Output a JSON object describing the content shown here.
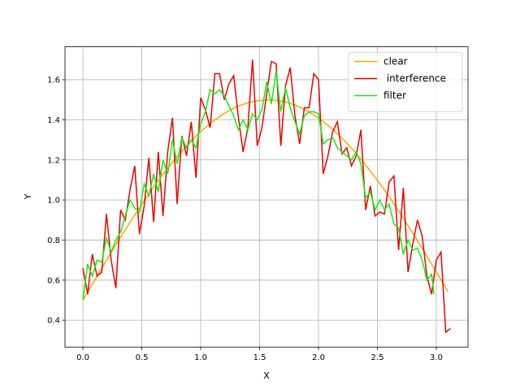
{
  "chart_data": {
    "type": "line",
    "xlabel": "X",
    "ylabel": "Y",
    "xlim": [
      -0.152,
      3.269
    ],
    "ylim": [
      0.266,
      1.764
    ],
    "xticks": [
      {
        "value": 0,
        "label": "0.0"
      },
      0.5,
      {
        "value": 1,
        "label": "1.0"
      },
      1.5,
      {
        "value": 2,
        "label": "2.0"
      },
      2.5,
      {
        "value": 3,
        "label": "3.0"
      }
    ],
    "yticks": [
      0.4,
      0.6,
      0.8,
      {
        "value": 1,
        "label": "1.0"
      },
      1.2,
      1.4,
      1.6
    ],
    "grid": true,
    "legend": "upper right",
    "series": [
      {
        "name": "clear",
        "color": "#ffa500",
        "x": [
          0,
          0.1,
          0.2,
          0.3,
          0.4,
          0.5,
          0.6,
          0.7,
          0.8,
          0.9,
          1.0,
          1.1,
          1.2,
          1.3,
          1.4,
          1.5,
          1.6,
          1.7,
          1.8,
          1.9,
          2.0,
          2.1,
          2.2,
          2.3,
          2.4,
          2.5,
          2.6,
          2.7,
          2.8,
          2.9,
          3.0,
          3.1
        ],
        "values": [
          0.5,
          0.6,
          0.699,
          0.796,
          0.889,
          0.979,
          1.065,
          1.144,
          1.217,
          1.283,
          1.341,
          1.391,
          1.432,
          1.464,
          1.485,
          1.497,
          1.5,
          1.492,
          1.474,
          1.446,
          1.409,
          1.363,
          1.308,
          1.246,
          1.175,
          1.098,
          1.016,
          0.927,
          0.835,
          0.739,
          0.641,
          0.542
        ]
      },
      {
        "name": " interference",
        "color": "#ee0000",
        "x": [
          0,
          0.04,
          0.08,
          0.12,
          0.16,
          0.2,
          0.24,
          0.28,
          0.32,
          0.36,
          0.4,
          0.44,
          0.48,
          0.52,
          0.56,
          0.6,
          0.64,
          0.68,
          0.72,
          0.76,
          0.8,
          0.84,
          0.88,
          0.92,
          0.96,
          1.0,
          1.04,
          1.08,
          1.12,
          1.16,
          1.2,
          1.24,
          1.28,
          1.32,
          1.36,
          1.4,
          1.44,
          1.48,
          1.52,
          1.56,
          1.6,
          1.64,
          1.68,
          1.72,
          1.76,
          1.8,
          1.84,
          1.88,
          1.92,
          1.96,
          2.0,
          2.04,
          2.08,
          2.12,
          2.16,
          2.2,
          2.24,
          2.28,
          2.32,
          2.36,
          2.4,
          2.44,
          2.48,
          2.52,
          2.56,
          2.6,
          2.64,
          2.68,
          2.72,
          2.76,
          2.8,
          2.84,
          2.88,
          2.92,
          2.96,
          3.0,
          3.04,
          3.08,
          3.12
        ],
        "values": [
          0.66,
          0.53,
          0.73,
          0.62,
          0.64,
          0.93,
          0.7,
          0.56,
          0.95,
          0.9,
          1.05,
          1.17,
          0.83,
          0.97,
          1.21,
          0.89,
          1.24,
          0.92,
          1.24,
          1.41,
          0.98,
          1.32,
          1.22,
          1.39,
          1.11,
          1.51,
          1.45,
          1.36,
          1.63,
          1.63,
          1.5,
          1.58,
          1.62,
          1.41,
          1.24,
          1.36,
          1.7,
          1.27,
          1.36,
          1.53,
          1.69,
          1.68,
          1.27,
          1.57,
          1.66,
          1.42,
          1.28,
          1.46,
          1.46,
          1.63,
          1.6,
          1.13,
          1.22,
          1.34,
          1.39,
          1.23,
          1.26,
          1.17,
          1.22,
          1.35,
          0.95,
          1.07,
          0.92,
          0.94,
          0.93,
          1.09,
          1.12,
          0.75,
          1.06,
          0.64,
          0.78,
          0.9,
          0.82,
          0.62,
          0.53,
          0.7,
          0.74,
          0.34,
          0.36
        ]
      },
      {
        "name": "filter",
        "color": "#11ee11",
        "x": [
          0,
          0.04,
          0.08,
          0.12,
          0.16,
          0.2,
          0.24,
          0.28,
          0.32,
          0.36,
          0.4,
          0.44,
          0.48,
          0.52,
          0.56,
          0.6,
          0.64,
          0.68,
          0.72,
          0.76,
          0.8,
          0.84,
          0.88,
          0.92,
          0.96,
          1.0,
          1.04,
          1.08,
          1.12,
          1.16,
          1.2,
          1.24,
          1.28,
          1.32,
          1.36,
          1.4,
          1.44,
          1.48,
          1.52,
          1.56,
          1.6,
          1.64,
          1.68,
          1.72,
          1.76,
          1.8,
          1.84,
          1.88,
          1.92,
          1.96,
          2.0,
          2.04,
          2.08,
          2.12,
          2.16,
          2.2,
          2.24,
          2.28,
          2.32,
          2.36,
          2.4,
          2.44,
          2.48,
          2.52,
          2.56,
          2.6,
          2.64,
          2.68,
          2.72,
          2.76,
          2.8,
          2.84,
          2.88,
          2.92,
          2.96,
          2.98
        ],
        "values": [
          0.5,
          0.68,
          0.62,
          0.7,
          0.69,
          0.81,
          0.74,
          0.8,
          0.84,
          0.92,
          1.0,
          0.96,
          0.94,
          1.08,
          1.02,
          1.13,
          1.04,
          1.2,
          1.13,
          1.3,
          1.18,
          1.31,
          1.26,
          1.3,
          1.26,
          1.38,
          1.44,
          1.55,
          1.53,
          1.55,
          1.52,
          1.47,
          1.42,
          1.35,
          1.4,
          1.35,
          1.43,
          1.4,
          1.45,
          1.59,
          1.48,
          1.64,
          1.44,
          1.56,
          1.46,
          1.39,
          1.33,
          1.42,
          1.44,
          1.44,
          1.43,
          1.28,
          1.3,
          1.31,
          1.26,
          1.24,
          1.22,
          1.2,
          1.24,
          1.18,
          1.01,
          1.04,
          0.95,
          1.0,
          0.95,
          0.98,
          0.88,
          0.86,
          0.73,
          0.8,
          0.75,
          0.76,
          0.7,
          0.6,
          0.63,
          0.53
        ]
      }
    ]
  }
}
